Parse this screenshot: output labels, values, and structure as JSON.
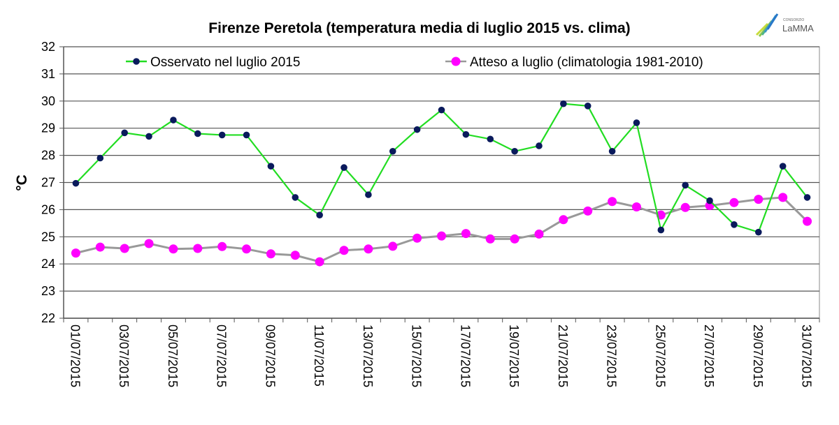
{
  "chart_data": {
    "type": "line",
    "title": "Firenze Peretola (temperatura media di luglio 2015 vs. clima)",
    "xlabel": "",
    "ylabel": "°C",
    "ylim": [
      22,
      32
    ],
    "yticks": [
      "22",
      "23",
      "24",
      "25",
      "26",
      "27",
      "28",
      "29",
      "30",
      "31",
      "32"
    ],
    "grid": true,
    "legend_position": "top",
    "x": [
      "01/07/2015",
      "02/07/2015",
      "03/07/2015",
      "04/07/2015",
      "05/07/2015",
      "06/07/2015",
      "07/07/2015",
      "08/07/2015",
      "09/07/2015",
      "10/07/2015",
      "11/07/2015",
      "12/07/2015",
      "13/07/2015",
      "14/07/2015",
      "15/07/2015",
      "16/07/2015",
      "17/07/2015",
      "18/07/2015",
      "19/07/2015",
      "20/07/2015",
      "21/07/2015",
      "22/07/2015",
      "23/07/2015",
      "24/07/2015",
      "25/07/2015",
      "26/07/2015",
      "27/07/2015",
      "28/07/2015",
      "29/07/2015",
      "30/07/2015",
      "31/07/2015"
    ],
    "xtick_labels": [
      "01/07/2015",
      "03/07/2015",
      "05/07/2015",
      "07/07/2015",
      "09/07/2015",
      "11/07/2015",
      "13/07/2015",
      "15/07/2015",
      "17/07/2015",
      "19/07/2015",
      "21/07/2015",
      "23/07/2015",
      "25/07/2015",
      "27/07/2015",
      "29/07/2015",
      "31/07/2015"
    ],
    "series": [
      {
        "name": "Osservato nel luglio 2015",
        "line_color": "#22dd22",
        "marker_color": "#0a1a5c",
        "values": [
          26.97,
          27.9,
          28.83,
          28.7,
          29.3,
          28.8,
          28.75,
          28.75,
          27.6,
          26.45,
          25.8,
          27.55,
          26.55,
          28.15,
          28.95,
          29.67,
          28.77,
          28.6,
          28.15,
          28.35,
          29.9,
          29.82,
          28.15,
          29.2,
          25.25,
          26.9,
          26.33,
          25.45,
          25.17,
          27.6,
          26.45
        ]
      },
      {
        "name": "Atteso a luglio (climatologia 1981-2010)",
        "line_color": "#999999",
        "marker_color": "#ff00ff",
        "values": [
          24.4,
          24.62,
          24.57,
          24.75,
          24.55,
          24.57,
          24.64,
          24.55,
          24.37,
          24.32,
          24.08,
          24.5,
          24.55,
          24.65,
          24.95,
          25.03,
          25.12,
          24.92,
          24.92,
          25.1,
          25.63,
          25.95,
          26.3,
          26.1,
          25.8,
          26.08,
          26.15,
          26.26,
          26.38,
          26.45,
          25.57
        ]
      }
    ]
  },
  "logo": {
    "small": "CONSORZIO",
    "name": "LaMMA"
  }
}
